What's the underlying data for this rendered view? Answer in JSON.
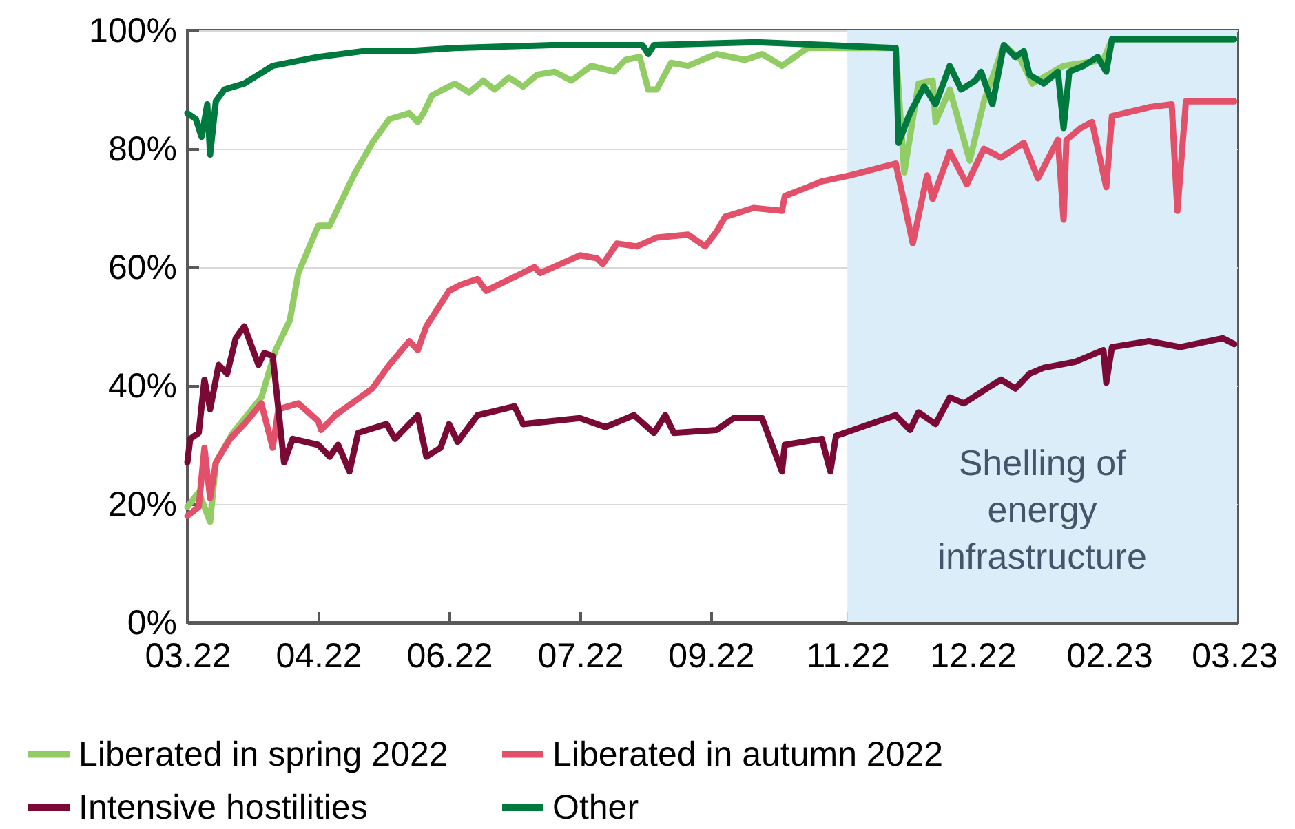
{
  "chart_data": {
    "type": "line",
    "ylim": [
      0,
      100
    ],
    "yticks": [
      {
        "value": 0,
        "label": "0%"
      },
      {
        "value": 20,
        "label": "20%"
      },
      {
        "value": 40,
        "label": "40%"
      },
      {
        "value": 60,
        "label": "60%"
      },
      {
        "value": 80,
        "label": "80%"
      },
      {
        "value": 100,
        "label": "100%"
      }
    ],
    "xlim": [
      "2022-03-14",
      "2023-03-18"
    ],
    "xticks": [
      {
        "value": "2022-03-14",
        "label": "03.22"
      },
      {
        "value": "2022-04-29",
        "label": "04.22"
      },
      {
        "value": "2022-06-14",
        "label": "06.22"
      },
      {
        "value": "2022-07-30",
        "label": "07.22"
      },
      {
        "value": "2022-09-14",
        "label": "09.22"
      },
      {
        "value": "2022-11-01",
        "label": "11.22"
      },
      {
        "value": "2022-12-15",
        "label": "12.22"
      },
      {
        "value": "2023-02-01",
        "label": "02.23"
      },
      {
        "value": "2023-03-17",
        "label": "03.23"
      }
    ],
    "grid": "y",
    "legend": "bottom",
    "line_style": "solid",
    "bands": [
      {
        "axis": "x",
        "from": "2022-11-01",
        "to": "2023-03-18",
        "label": "Shelling of energy infrastructure",
        "color": "#dbedf8"
      }
    ],
    "series": [
      {
        "name": "Liberated in spring 2022",
        "color": "#92cc64",
        "x": [
          "2022-03-14",
          "2022-03-18",
          "2022-03-22",
          "2022-03-24",
          "2022-03-30",
          "2022-04-09",
          "2022-04-14",
          "2022-04-19",
          "2022-04-22",
          "2022-04-29",
          "2022-05-03",
          "2022-05-07",
          "2022-05-12",
          "2022-05-18",
          "2022-05-24",
          "2022-05-31",
          "2022-06-03",
          "2022-06-05",
          "2022-06-08",
          "2022-06-16",
          "2022-06-21",
          "2022-06-26",
          "2022-06-30",
          "2022-07-05",
          "2022-07-10",
          "2022-07-15",
          "2022-07-21",
          "2022-07-27",
          "2022-08-03",
          "2022-08-11",
          "2022-08-15",
          "2022-08-20",
          "2022-08-23",
          "2022-08-26",
          "2022-08-31",
          "2022-09-06",
          "2022-09-16",
          "2022-09-26",
          "2022-10-02",
          "2022-10-09",
          "2022-10-18",
          "2022-11-03",
          "2022-11-18",
          "2022-11-21",
          "2022-11-26",
          "2022-12-01",
          "2022-12-02",
          "2022-12-07",
          "2022-12-14",
          "2022-12-19",
          "2022-12-26",
          "2023-01-01",
          "2023-01-05",
          "2023-01-16",
          "2023-01-30",
          "2023-02-02",
          "2023-03-17"
        ],
        "values": [
          19.5,
          22,
          17,
          27,
          32,
          38,
          46,
          51,
          59,
          67,
          67,
          71,
          76,
          81,
          85,
          86,
          84.5,
          86,
          89,
          91,
          89.5,
          91.5,
          90,
          92,
          90.5,
          92.5,
          93,
          91.5,
          94,
          93,
          95,
          95.5,
          90,
          90,
          94.5,
          94,
          96,
          95,
          96,
          94,
          97,
          97,
          97,
          76,
          91,
          91.5,
          84.5,
          90,
          78,
          88,
          97.5,
          95,
          91,
          94,
          95,
          98.5,
          98.5
        ]
      },
      {
        "name": "Liberated in autumn 2022",
        "color": "#e35069",
        "x": [
          "2022-03-14",
          "2022-03-18",
          "2022-03-20",
          "2022-03-22",
          "2022-03-24",
          "2022-03-29",
          "2022-04-03",
          "2022-04-09",
          "2022-04-13",
          "2022-04-15",
          "2022-04-22",
          "2022-04-29",
          "2022-04-30",
          "2022-05-05",
          "2022-05-18",
          "2022-05-24",
          "2022-05-31",
          "2022-06-03",
          "2022-06-06",
          "2022-06-14",
          "2022-06-18",
          "2022-06-24",
          "2022-06-27",
          "2022-07-14",
          "2022-07-16",
          "2022-07-30",
          "2022-08-05",
          "2022-08-07",
          "2022-08-12",
          "2022-08-19",
          "2022-08-26",
          "2022-09-06",
          "2022-09-12",
          "2022-09-16",
          "2022-09-19",
          "2022-09-29",
          "2022-10-09",
          "2022-10-10",
          "2022-10-18",
          "2022-10-23",
          "2022-11-02",
          "2022-11-18",
          "2022-11-24",
          "2022-11-29",
          "2022-12-01",
          "2022-12-07",
          "2022-12-13",
          "2022-12-19",
          "2022-12-25",
          "2023-01-02",
          "2023-01-07",
          "2023-01-14",
          "2023-01-16",
          "2023-01-17",
          "2023-01-22",
          "2023-01-26",
          "2023-01-31",
          "2023-02-02",
          "2023-02-15",
          "2023-02-23",
          "2023-02-25",
          "2023-02-28",
          "2023-03-17"
        ],
        "values": [
          18,
          19.5,
          29.5,
          21,
          27,
          31,
          33.5,
          37,
          29.5,
          36,
          37,
          34,
          32.5,
          35,
          39.5,
          43.5,
          47.5,
          46,
          50,
          56,
          57,
          58,
          56,
          60,
          59,
          62,
          61.5,
          60.5,
          64,
          63.5,
          65,
          65.5,
          63.5,
          66,
          68.5,
          70,
          69.5,
          72,
          73.5,
          74.5,
          75.5,
          77.5,
          64,
          75.5,
          71.5,
          79.5,
          74,
          80,
          78.5,
          81,
          75,
          81.5,
          68,
          81.5,
          83.5,
          84.5,
          73.5,
          85.5,
          87,
          87.5,
          69.5,
          88,
          88
        ]
      },
      {
        "name": "Intensive hostilities",
        "color": "#7a0a35",
        "x": [
          "2022-03-14",
          "2022-03-15",
          "2022-03-18",
          "2022-03-20",
          "2022-03-22",
          "2022-03-25",
          "2022-03-28",
          "2022-03-31",
          "2022-04-03",
          "2022-04-08",
          "2022-04-10",
          "2022-04-13",
          "2022-04-17",
          "2022-04-20",
          "2022-04-29",
          "2022-05-03",
          "2022-05-06",
          "2022-05-10",
          "2022-05-13",
          "2022-05-23",
          "2022-05-26",
          "2022-05-31",
          "2022-06-03",
          "2022-06-06",
          "2022-06-11",
          "2022-06-14",
          "2022-06-17",
          "2022-06-24",
          "2022-07-07",
          "2022-07-10",
          "2022-07-30",
          "2022-08-08",
          "2022-08-18",
          "2022-08-25",
          "2022-08-29",
          "2022-09-01",
          "2022-09-16",
          "2022-09-22",
          "2022-10-02",
          "2022-10-09",
          "2022-10-10",
          "2022-10-23",
          "2022-10-26",
          "2022-10-28",
          "2022-11-03",
          "2022-11-18",
          "2022-11-23",
          "2022-11-26",
          "2022-12-02",
          "2022-12-07",
          "2022-12-12",
          "2022-12-20",
          "2022-12-25",
          "2022-12-30",
          "2023-01-04",
          "2023-01-09",
          "2023-01-20",
          "2023-01-30",
          "2023-01-31",
          "2023-02-02",
          "2023-02-15",
          "2023-02-26",
          "2023-03-13",
          "2023-03-17"
        ],
        "values": [
          27,
          31,
          32,
          41,
          36,
          43.5,
          42,
          48,
          50,
          43.5,
          45.5,
          45,
          27,
          31,
          30,
          28,
          30,
          25.5,
          32,
          33.5,
          31,
          33.5,
          35,
          28,
          29.5,
          33.5,
          30.5,
          35,
          36.5,
          33.5,
          34.5,
          33,
          35,
          32,
          35,
          32,
          32.5,
          34.5,
          34.5,
          25.5,
          30,
          31,
          25.5,
          31.5,
          32.5,
          35,
          32.5,
          35.5,
          33.5,
          38,
          37,
          39.5,
          41,
          39.5,
          42,
          43,
          44,
          46,
          40.5,
          46.5,
          47.5,
          46.5,
          48,
          47
        ]
      },
      {
        "name": "Other",
        "color": "#00793f",
        "x": [
          "2022-03-14",
          "2022-03-17",
          "2022-03-19",
          "2022-03-21",
          "2022-03-22",
          "2022-03-24",
          "2022-03-27",
          "2022-04-03",
          "2022-04-13",
          "2022-04-29",
          "2022-05-15",
          "2022-05-31",
          "2022-06-16",
          "2022-07-20",
          "2022-08-13",
          "2022-08-21",
          "2022-08-23",
          "2022-08-25",
          "2022-09-30",
          "2022-10-25",
          "2022-11-18",
          "2022-11-19",
          "2022-11-23",
          "2022-11-28",
          "2022-12-02",
          "2022-12-07",
          "2022-12-11",
          "2022-12-16",
          "2022-12-18",
          "2022-12-22",
          "2022-12-26",
          "2022-12-30",
          "2023-01-02",
          "2023-01-04",
          "2023-01-09",
          "2023-01-14",
          "2023-01-16",
          "2023-01-18",
          "2023-01-23",
          "2023-01-28",
          "2023-01-31",
          "2023-02-02",
          "2023-02-15",
          "2023-02-28",
          "2023-03-17"
        ],
        "values": [
          86,
          85,
          82,
          87.5,
          79,
          88,
          90,
          91,
          94,
          95.5,
          96.5,
          96.5,
          97,
          97.5,
          97.5,
          97.5,
          96,
          97.5,
          98,
          97.5,
          97,
          81,
          86,
          90.5,
          87.5,
          94,
          90,
          91.5,
          93,
          87.5,
          97.5,
          95.5,
          96.5,
          92.5,
          91,
          93,
          83.5,
          93,
          94,
          95.5,
          93,
          98.5,
          98.5,
          98.5,
          98.5
        ]
      }
    ]
  }
}
